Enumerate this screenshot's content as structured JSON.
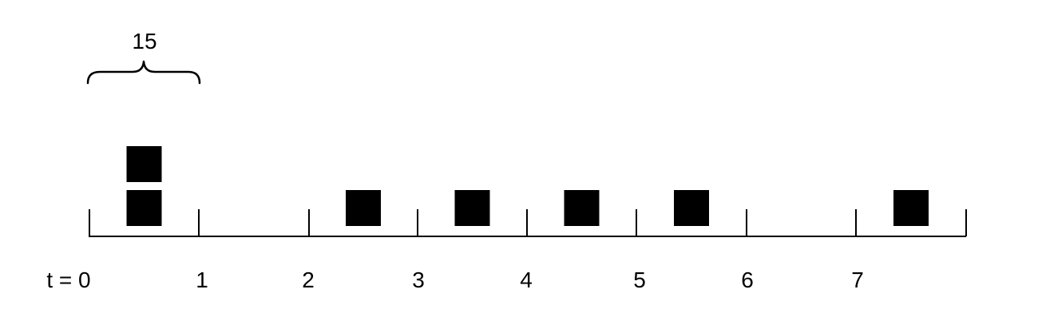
{
  "diagram": {
    "brace_label": "15",
    "tick_labels": [
      "t = 0",
      "1",
      "2",
      "3",
      "4",
      "5",
      "6",
      "7"
    ],
    "block_counts": [
      2,
      0,
      1,
      1,
      1,
      1,
      0,
      1
    ],
    "colors": {
      "stroke": "#000000",
      "block": "#000000",
      "background": "#ffffff"
    }
  }
}
